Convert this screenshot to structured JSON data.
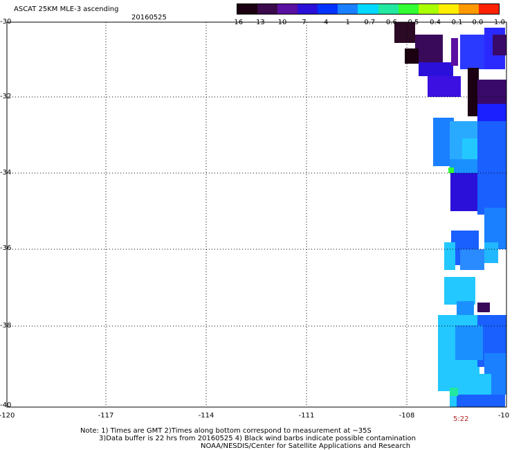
{
  "header": {
    "title": "ASCAT 25KM MLE-3 ascending",
    "date": "20160525"
  },
  "colorbar": {
    "labels": [
      "-16",
      "-13",
      "-10",
      "-7",
      "-4",
      "-1",
      "-0.7",
      "-0.6",
      "-0.5",
      "-0.4",
      "-0.1",
      "0.0",
      "1.0"
    ],
    "colors": [
      "#1a0010",
      "#3a0a4a",
      "#5a10a0",
      "#2a10d8",
      "#0033ff",
      "#1a80ff",
      "#00d8ff",
      "#22e8a0",
      "#33ff33",
      "#aaff00",
      "#ffee00",
      "#ff9900",
      "#ff2200"
    ]
  },
  "axes": {
    "y_labels": [
      "-30",
      "-32",
      "-34",
      "-36",
      "-38",
      "-40"
    ],
    "x_labels": [
      "-120",
      "-117",
      "-114",
      "-111",
      "-108",
      "-10"
    ],
    "time_label": "5:22"
  },
  "notes": {
    "line1": "Note: 1) Times are GMT 2)Times along bottom correspond to measurement at ~35S",
    "line2": "3)Data buffer is 22 hrs from 20160525 4) Black wind barbs indicate possible contamination",
    "line3": "NOAA/NESDIS/Center for Satellite Applications and Research"
  }
}
